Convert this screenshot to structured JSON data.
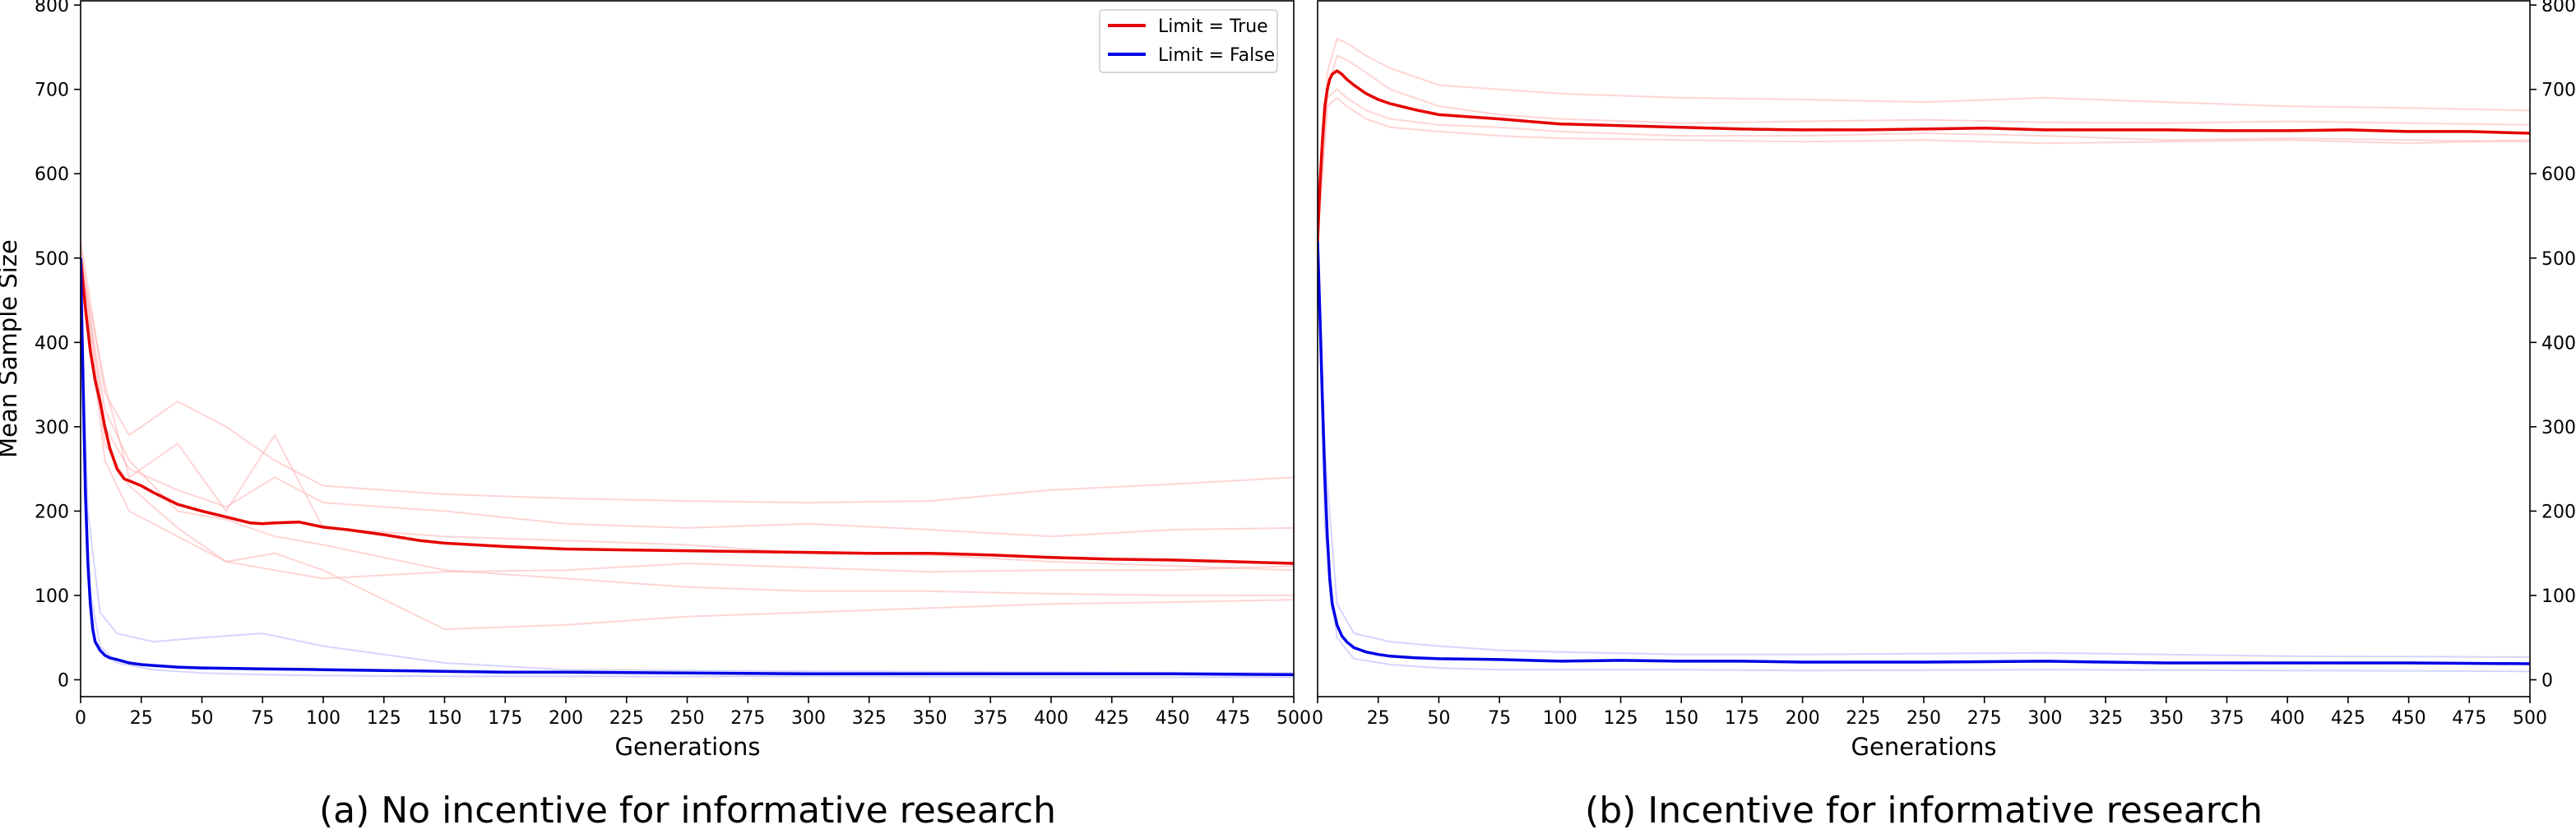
{
  "chart_data": [
    {
      "type": "line",
      "caption": "(a) No incentive for informative research",
      "xlabel": "Generations",
      "ylabel": "Mean Sample Size",
      "xlim": [
        0,
        500
      ],
      "ylim": [
        -20,
        805
      ],
      "xticks": [
        0,
        25,
        50,
        75,
        100,
        125,
        150,
        175,
        200,
        225,
        250,
        275,
        300,
        325,
        350,
        375,
        400,
        425,
        450,
        475,
        500
      ],
      "yticks": [
        0,
        100,
        200,
        300,
        400,
        500,
        600,
        700,
        800
      ],
      "y_axis_side": "left",
      "legend": {
        "location": "top-right",
        "entries": [
          "Limit = True",
          "Limit = False"
        ]
      },
      "series": [
        {
          "name": "Limit = True",
          "color": "#e60000",
          "x": [
            0,
            2,
            4,
            6,
            8,
            10,
            12,
            15,
            18,
            20,
            25,
            30,
            35,
            40,
            50,
            60,
            70,
            75,
            80,
            90,
            100,
            110,
            125,
            140,
            150,
            175,
            200,
            225,
            250,
            275,
            300,
            325,
            350,
            375,
            400,
            425,
            450,
            475,
            500
          ],
          "y": [
            500,
            440,
            390,
            355,
            330,
            300,
            275,
            250,
            238,
            236,
            230,
            222,
            215,
            208,
            200,
            193,
            186,
            185,
            186,
            187,
            181,
            178,
            172,
            165,
            162,
            158,
            155,
            154,
            153,
            152,
            151,
            150,
            150,
            148,
            145,
            143,
            142,
            140,
            138
          ]
        },
        {
          "name": "Limit = False",
          "color": "#0000e6",
          "x": [
            0,
            1,
            2,
            3,
            4,
            5,
            6,
            8,
            10,
            12,
            15,
            20,
            25,
            30,
            40,
            50,
            75,
            100,
            125,
            150,
            175,
            200,
            250,
            300,
            350,
            400,
            450,
            500
          ],
          "y": [
            500,
            350,
            220,
            140,
            90,
            60,
            45,
            35,
            29,
            26,
            24,
            20,
            18,
            17,
            15,
            14,
            13,
            12,
            11,
            10,
            9,
            9,
            8,
            7,
            7,
            7,
            7,
            6
          ]
        }
      ],
      "faint_runs": [
        {
          "color": "#ffb3b3",
          "x": [
            0,
            10,
            20,
            40,
            60,
            80,
            100,
            150,
            200,
            250,
            300,
            350,
            400,
            450,
            500
          ],
          "y": [
            520,
            340,
            290,
            330,
            300,
            260,
            230,
            220,
            215,
            212,
            210,
            212,
            225,
            232,
            240
          ]
        },
        {
          "color": "#ffb3b3",
          "x": [
            0,
            10,
            20,
            40,
            60,
            80,
            100,
            150,
            200,
            250,
            300,
            350,
            400,
            450,
            500
          ],
          "y": [
            510,
            300,
            250,
            225,
            205,
            240,
            210,
            200,
            185,
            180,
            185,
            178,
            170,
            178,
            180
          ]
        },
        {
          "color": "#ffb3b3",
          "x": [
            0,
            10,
            20,
            40,
            60,
            80,
            100,
            150,
            200,
            250,
            300,
            350,
            400,
            450,
            500
          ],
          "y": [
            505,
            260,
            200,
            170,
            140,
            130,
            120,
            128,
            130,
            138,
            133,
            128,
            130,
            130,
            135
          ]
        },
        {
          "color": "#ffb3b3",
          "x": [
            0,
            10,
            20,
            40,
            60,
            80,
            100,
            150,
            200,
            250,
            300,
            350,
            400,
            450,
            500
          ],
          "y": [
            500,
            320,
            260,
            200,
            190,
            170,
            160,
            130,
            120,
            110,
            105,
            105,
            102,
            100,
            100
          ]
        },
        {
          "color": "#ffb3b3",
          "x": [
            0,
            10,
            20,
            40,
            60,
            80,
            100,
            150,
            200,
            250,
            300,
            350,
            400,
            450,
            500
          ],
          "y": [
            515,
            280,
            230,
            180,
            140,
            150,
            130,
            60,
            65,
            75,
            80,
            85,
            90,
            92,
            95
          ]
        },
        {
          "color": "#ffb3b3",
          "x": [
            0,
            10,
            20,
            40,
            60,
            80,
            100,
            150,
            200,
            250,
            300,
            350,
            400,
            450,
            500
          ],
          "y": [
            500,
            350,
            240,
            280,
            200,
            290,
            180,
            170,
            165,
            160,
            150,
            148,
            140,
            135,
            130
          ]
        },
        {
          "color": "#b3b3ff",
          "x": [
            0,
            3,
            8,
            15,
            30,
            50,
            75,
            100,
            150,
            200,
            300,
            400,
            500
          ],
          "y": [
            500,
            200,
            80,
            55,
            45,
            50,
            55,
            40,
            20,
            12,
            10,
            9,
            8
          ]
        },
        {
          "color": "#b3b3ff",
          "x": [
            0,
            3,
            8,
            15,
            30,
            50,
            75,
            100,
            150,
            200,
            300,
            400,
            500
          ],
          "y": [
            500,
            120,
            40,
            20,
            12,
            8,
            6,
            5,
            4,
            4,
            4,
            3,
            3
          ]
        }
      ]
    },
    {
      "type": "line",
      "caption": "(b) Incentive for informative research",
      "xlabel": "Generations",
      "ylabel": "",
      "xlim": [
        0,
        500
      ],
      "ylim": [
        -20,
        805
      ],
      "xticks": [
        0,
        25,
        50,
        75,
        100,
        125,
        150,
        175,
        200,
        225,
        250,
        275,
        300,
        325,
        350,
        375,
        400,
        425,
        450,
        475,
        500
      ],
      "yticks": [
        0,
        100,
        200,
        300,
        400,
        500,
        600,
        700,
        800
      ],
      "y_axis_side": "right",
      "series": [
        {
          "name": "Limit = True",
          "color": "#e60000",
          "x": [
            0,
            1,
            2,
            3,
            4,
            5,
            6,
            8,
            10,
            12,
            15,
            20,
            25,
            30,
            40,
            50,
            60,
            75,
            100,
            125,
            150,
            175,
            200,
            225,
            250,
            275,
            300,
            325,
            350,
            375,
            400,
            425,
            450,
            475,
            500
          ],
          "y": [
            520,
            590,
            640,
            680,
            700,
            712,
            718,
            722,
            718,
            712,
            705,
            695,
            688,
            683,
            676,
            670,
            668,
            665,
            659,
            657,
            655,
            653,
            652,
            652,
            653,
            654,
            652,
            652,
            652,
            651,
            651,
            652,
            650,
            650,
            648
          ]
        },
        {
          "name": "Limit = False",
          "color": "#0000e6",
          "x": [
            0,
            1,
            2,
            3,
            4,
            5,
            6,
            8,
            10,
            12,
            15,
            20,
            25,
            30,
            40,
            50,
            75,
            100,
            125,
            150,
            175,
            200,
            250,
            300,
            325,
            350,
            400,
            450,
            500
          ],
          "y": [
            520,
            430,
            330,
            240,
            170,
            120,
            90,
            65,
            52,
            45,
            38,
            33,
            30,
            28,
            26,
            25,
            24,
            22,
            23,
            22,
            22,
            21,
            21,
            22,
            21,
            20,
            20,
            20,
            19
          ]
        }
      ],
      "faint_runs": [
        {
          "color": "#ffb3b3",
          "x": [
            0,
            4,
            8,
            12,
            20,
            30,
            50,
            75,
            100,
            150,
            200,
            250,
            300,
            350,
            400,
            450,
            500
          ],
          "y": [
            520,
            720,
            760,
            755,
            740,
            725,
            705,
            700,
            695,
            690,
            688,
            685,
            690,
            685,
            680,
            678,
            675
          ]
        },
        {
          "color": "#ffb3b3",
          "x": [
            0,
            4,
            8,
            12,
            20,
            30,
            50,
            75,
            100,
            150,
            200,
            250,
            300,
            350,
            400,
            450,
            500
          ],
          "y": [
            520,
            690,
            700,
            690,
            675,
            665,
            658,
            655,
            650,
            645,
            645,
            648,
            645,
            640,
            642,
            640,
            638
          ]
        },
        {
          "color": "#ffb3b3",
          "x": [
            0,
            4,
            8,
            12,
            20,
            30,
            50,
            75,
            100,
            150,
            200,
            250,
            300,
            350,
            400,
            450,
            500
          ],
          "y": [
            520,
            700,
            740,
            735,
            720,
            700,
            680,
            670,
            665,
            660,
            662,
            664,
            661,
            660,
            662,
            660,
            658
          ]
        },
        {
          "color": "#ffb3b3",
          "x": [
            0,
            4,
            8,
            12,
            20,
            30,
            50,
            75,
            100,
            150,
            200,
            250,
            300,
            350,
            400,
            450,
            500
          ],
          "y": [
            520,
            680,
            690,
            680,
            665,
            655,
            650,
            645,
            642,
            640,
            638,
            640,
            636,
            638,
            640,
            636,
            640
          ]
        },
        {
          "color": "#b3b3ff",
          "x": [
            0,
            3,
            8,
            15,
            30,
            50,
            75,
            100,
            150,
            200,
            300,
            400,
            500
          ],
          "y": [
            520,
            270,
            90,
            55,
            45,
            40,
            35,
            33,
            30,
            30,
            32,
            28,
            27
          ]
        },
        {
          "color": "#b3b3ff",
          "x": [
            0,
            3,
            8,
            15,
            30,
            50,
            75,
            100,
            150,
            200,
            300,
            400,
            500
          ],
          "y": [
            520,
            180,
            50,
            25,
            18,
            14,
            12,
            12,
            12,
            11,
            12,
            11,
            10
          ]
        }
      ]
    }
  ]
}
